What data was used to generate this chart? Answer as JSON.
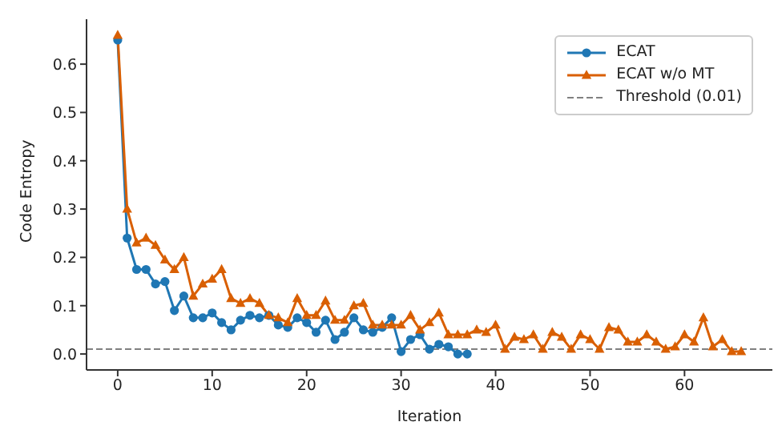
{
  "chart_data": {
    "type": "line",
    "xlabel": "Iteration",
    "ylabel": "Code Entropy",
    "xlim": [
      -3.3,
      69.3
    ],
    "ylim": [
      -0.033,
      0.693
    ],
    "xticks": [
      0,
      10,
      20,
      30,
      40,
      50,
      60
    ],
    "yticks": [
      {
        "value": 0,
        "label": "0.0"
      },
      {
        "value": 0.1,
        "label": "0.1"
      },
      {
        "value": 0.2,
        "label": "0.2"
      },
      {
        "value": 0.3,
        "label": "0.3"
      },
      {
        "value": 0.4,
        "label": "0.4"
      },
      {
        "value": 0.5,
        "label": "0.5"
      },
      {
        "value": 0.6,
        "label": "0.6"
      }
    ],
    "grid": false,
    "legend": "top right",
    "series": [
      {
        "name": "ECAT",
        "color": "#1f77b4",
        "marker": "circle",
        "x": [
          0,
          1,
          2,
          3,
          4,
          5,
          6,
          7,
          8,
          9,
          10,
          11,
          12,
          13,
          14,
          15,
          16,
          17,
          18,
          19,
          20,
          21,
          22,
          23,
          24,
          25,
          26,
          27,
          28,
          29,
          30,
          31,
          32,
          33,
          34,
          35,
          36,
          37
        ],
        "values": [
          0.65,
          0.24,
          0.175,
          0.175,
          0.145,
          0.15,
          0.09,
          0.12,
          0.075,
          0.075,
          0.085,
          0.065,
          0.05,
          0.07,
          0.08,
          0.075,
          0.08,
          0.06,
          0.055,
          0.075,
          0.065,
          0.045,
          0.07,
          0.03,
          0.045,
          0.075,
          0.05,
          0.045,
          0.055,
          0.075,
          0.005,
          0.03,
          0.04,
          0.01,
          0.02,
          0.015,
          0.0,
          0.0
        ]
      },
      {
        "name": "ECAT w/o MT",
        "color": "#d95f02",
        "marker": "triangle",
        "x": [
          0,
          1,
          2,
          3,
          4,
          5,
          6,
          7,
          8,
          9,
          10,
          11,
          12,
          13,
          14,
          15,
          16,
          17,
          18,
          19,
          20,
          21,
          22,
          23,
          24,
          25,
          26,
          27,
          28,
          29,
          30,
          31,
          32,
          33,
          34,
          35,
          36,
          37,
          38,
          39,
          40,
          41,
          42,
          43,
          44,
          45,
          46,
          47,
          48,
          49,
          50,
          51,
          52,
          53,
          54,
          55,
          56,
          57,
          58,
          59,
          60,
          61,
          62,
          63,
          64,
          65,
          66
        ],
        "values": [
          0.66,
          0.3,
          0.23,
          0.24,
          0.225,
          0.195,
          0.175,
          0.2,
          0.12,
          0.145,
          0.155,
          0.175,
          0.115,
          0.105,
          0.115,
          0.105,
          0.08,
          0.075,
          0.065,
          0.115,
          0.08,
          0.08,
          0.11,
          0.07,
          0.07,
          0.1,
          0.105,
          0.06,
          0.06,
          0.06,
          0.06,
          0.08,
          0.05,
          0.065,
          0.085,
          0.04,
          0.04,
          0.04,
          0.05,
          0.045,
          0.06,
          0.01,
          0.035,
          0.03,
          0.04,
          0.01,
          0.045,
          0.035,
          0.01,
          0.04,
          0.03,
          0.01,
          0.055,
          0.05,
          0.025,
          0.025,
          0.04,
          0.025,
          0.01,
          0.015,
          0.04,
          0.025,
          0.075,
          0.015,
          0.03,
          0.005,
          0.005
        ]
      }
    ],
    "ref_lines": [
      {
        "axis": "y",
        "value": 0.01,
        "label": "Threshold (0.01)",
        "color": "#808080",
        "line_style": "dashed"
      }
    ]
  }
}
